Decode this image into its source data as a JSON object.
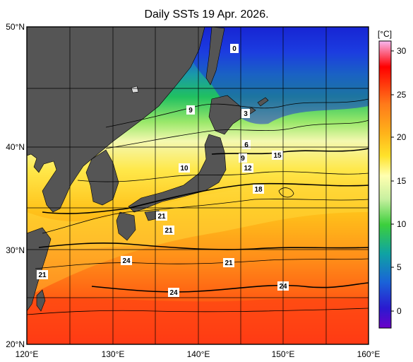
{
  "title": "Daily SSTs 19 Apr. 2026.",
  "lat_labels": [
    "50°N",
    "40°N",
    "30°N",
    "20°N"
  ],
  "lon_labels": [
    "120°E",
    "130°E",
    "140°E",
    "150°E",
    "160°E"
  ],
  "colorbar": {
    "unit": "[°C]",
    "ticks": [
      "30",
      "25",
      "20",
      "15",
      "10",
      "5",
      "0"
    ],
    "stops": [
      {
        "c": "#f7b8f0"
      },
      {
        "c": "#ff0000"
      },
      {
        "c": "#ff7a1a"
      },
      {
        "c": "#ffb21a"
      },
      {
        "c": "#ffe22a"
      },
      {
        "c": "#ffffb0"
      },
      {
        "c": "#c8f0a0"
      },
      {
        "c": "#3ccf3c"
      },
      {
        "c": "#0fa3a3"
      },
      {
        "c": "#1a63d8"
      },
      {
        "c": "#2a1ad0"
      },
      {
        "c": "#6a00c8"
      }
    ]
  },
  "contour_labels": [
    "0",
    "3",
    "9",
    "6",
    "9",
    "10",
    "12",
    "15",
    "18",
    "21",
    "21",
    "24",
    "21",
    "24",
    "24",
    "21"
  ],
  "colors": {
    "land": "#555555",
    "frame": "#000000"
  }
}
